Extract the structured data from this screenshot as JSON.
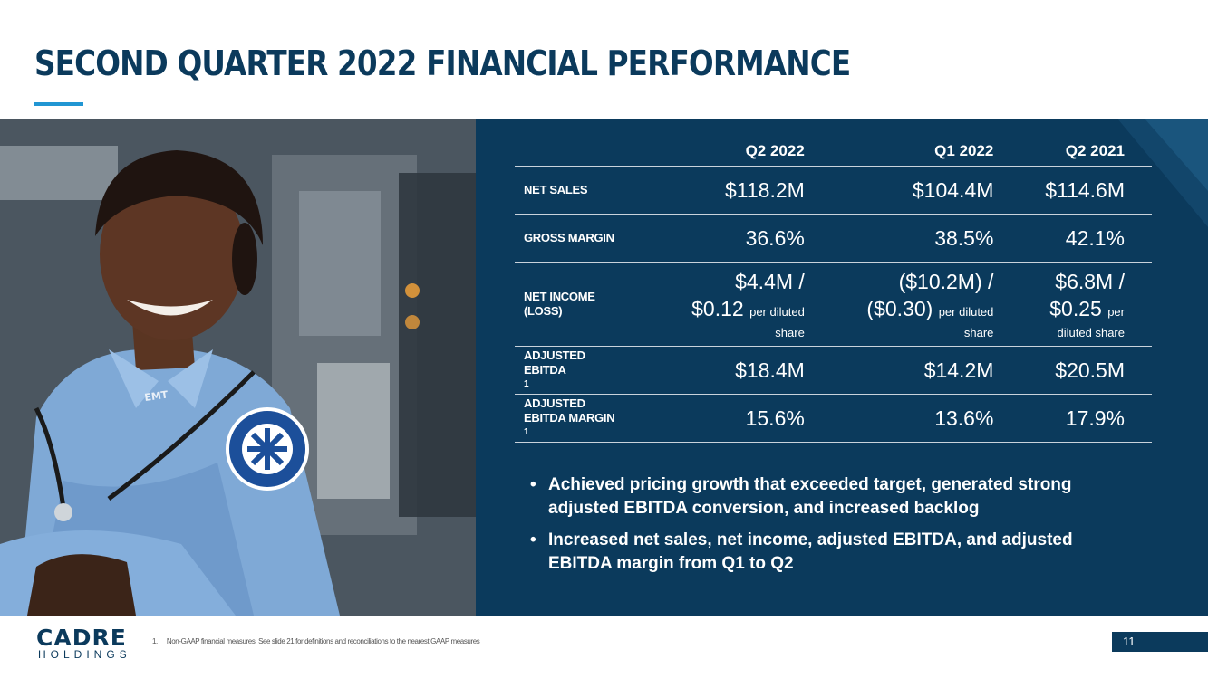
{
  "title": "SECOND QUARTER 2022 FINANCIAL PERFORMANCE",
  "colors": {
    "navy": "#0b3a5c",
    "accent": "#2196d3"
  },
  "table": {
    "columns": [
      "Q2 2022",
      "Q1 2022",
      "Q2 2021"
    ],
    "rows": {
      "net_sales": {
        "label": "NET SALES",
        "values": [
          "$118.2M",
          "$104.4M",
          "$114.6M"
        ]
      },
      "gross_margin": {
        "label": "GROSS MARGIN",
        "values": [
          "36.6%",
          "38.5%",
          "42.1%"
        ]
      },
      "net_income": {
        "label_line1": "NET INCOME",
        "label_line2": "(LOSS)",
        "values": [
          {
            "line1": "$4.4M /",
            "eps": "$0.12",
            "suffix": "per diluted",
            "line3": "share"
          },
          {
            "line1": "($10.2M) /",
            "eps": "($0.30)",
            "suffix": "per diluted",
            "line3": "share"
          },
          {
            "line1": "$6.8M /",
            "eps": "$0.25",
            "suffix": "per",
            "line3": "diluted share"
          }
        ]
      },
      "adj_ebitda": {
        "label_line1": "ADJUSTED",
        "label_line2": "EBITDA",
        "footnote_mark": "1",
        "values": [
          "$18.4M",
          "$14.2M",
          "$20.5M"
        ]
      },
      "adj_ebitda_margin": {
        "label_line1": "ADJUSTED",
        "label_line2": "EBITDA MARGIN",
        "footnote_mark": "1",
        "values": [
          "15.6%",
          "13.6%",
          "17.9%"
        ]
      }
    }
  },
  "bullets": [
    "Achieved pricing growth that exceeded target, generated strong adjusted EBITDA conversion, and increased backlog",
    "Increased net sales, net income, adjusted EBITDA, and adjusted EBITDA margin from Q1 to Q2"
  ],
  "bullet_symbol": "•",
  "photo": {
    "patch_text": "EMERGENCY MEDICAL TECHNICIAN",
    "badge_text": "EMT"
  },
  "footer": {
    "logo_main": "CADRE",
    "logo_sub": "HOLDINGS",
    "footnote_number": "1.",
    "footnote_text": "Non-GAAP financial measures. See slide 21 for definitions and reconciliations to the nearest GAAP measures",
    "page_number": "11"
  }
}
